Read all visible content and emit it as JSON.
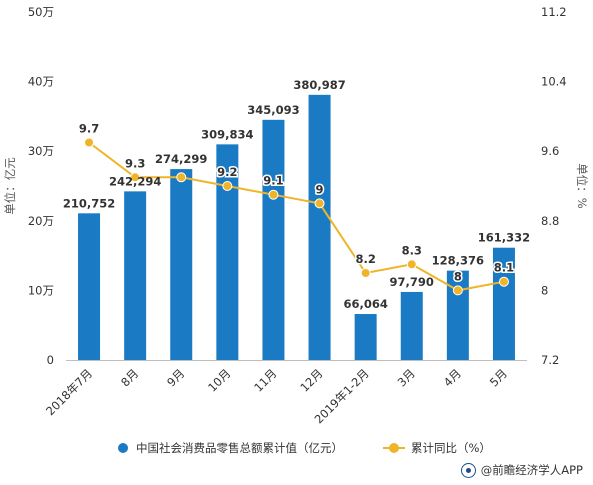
{
  "chart_data": {
    "type": "bar",
    "categories": [
      "2018年7月",
      "8月",
      "9月",
      "10月",
      "11月",
      "12月",
      "2019年1-2月",
      "3月",
      "4月",
      "5月"
    ],
    "y_left": {
      "label": "单位：亿元",
      "ticks": [
        "0",
        "10万",
        "20万",
        "30万",
        "40万",
        "50万"
      ],
      "range": [
        0,
        500000
      ]
    },
    "y_right": {
      "label": "单位：%",
      "ticks": [
        "7.2",
        "8",
        "8.8",
        "9.6",
        "10.4",
        "11.2"
      ],
      "range": [
        7.2,
        11.2
      ]
    },
    "series": [
      {
        "name": "中国社会消费品零售总额累计值（亿元）",
        "type": "bar",
        "axis": "left",
        "color": "#1a7bc4",
        "values": [
          210752,
          242294,
          274299,
          309834,
          345093,
          380987,
          66064,
          97790,
          128376,
          161332
        ],
        "labels": [
          "210,752",
          "242,294",
          "274,299",
          "309,834",
          "345,093",
          "380,987",
          "66,064",
          "97,790",
          "128,376",
          "161,332"
        ]
      },
      {
        "name": "累计同比（%）",
        "type": "line",
        "axis": "right",
        "color": "#f0b429",
        "values": [
          9.7,
          9.3,
          9.3,
          9.2,
          9.1,
          9,
          8.2,
          8.3,
          8,
          8.1
        ],
        "labels": [
          "9.7",
          "9.3",
          "",
          "9.2",
          "9.1",
          "9",
          "8.2",
          "8.3",
          "8",
          "8.1"
        ]
      }
    ],
    "grid": false,
    "legend": "bottom"
  },
  "legend": {
    "bar_label": "中国社会消费品零售总额累计值（亿元）",
    "line_label": "累计同比（%）"
  },
  "footer": {
    "credit": "@前瞻经济学人APP"
  }
}
